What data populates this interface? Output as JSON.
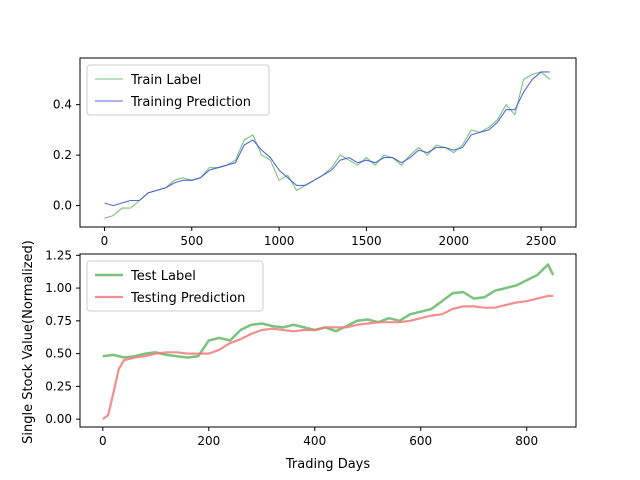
{
  "chart_data": [
    {
      "type": "line",
      "title": "",
      "xlabel": "",
      "ylabel": "",
      "xlim": [
        -140,
        2700
      ],
      "ylim": [
        -0.085,
        0.585
      ],
      "xticks": [
        0,
        500,
        1000,
        1500,
        2000,
        2500
      ],
      "yticks": [
        0.0,
        0.2,
        0.4
      ],
      "ytick_labels": [
        "0.0",
        "0.2",
        "0.4"
      ],
      "legend_position": "upper-left",
      "grid": false,
      "series": [
        {
          "name": "Train Label",
          "color": "#4caf50",
          "x": [
            0,
            50,
            100,
            150,
            200,
            250,
            300,
            350,
            400,
            450,
            500,
            550,
            600,
            650,
            700,
            750,
            800,
            850,
            900,
            950,
            1000,
            1050,
            1100,
            1150,
            1200,
            1250,
            1300,
            1350,
            1400,
            1450,
            1500,
            1550,
            1600,
            1650,
            1700,
            1750,
            1800,
            1850,
            1900,
            1950,
            2000,
            2050,
            2100,
            2150,
            2200,
            2250,
            2300,
            2350,
            2400,
            2450,
            2500,
            2550
          ],
          "y": [
            -0.05,
            -0.04,
            -0.01,
            -0.01,
            0.02,
            0.05,
            0.06,
            0.07,
            0.1,
            0.11,
            0.1,
            0.11,
            0.15,
            0.15,
            0.16,
            0.18,
            0.26,
            0.28,
            0.2,
            0.18,
            0.1,
            0.12,
            0.06,
            0.08,
            0.1,
            0.12,
            0.15,
            0.2,
            0.18,
            0.16,
            0.19,
            0.16,
            0.2,
            0.19,
            0.16,
            0.2,
            0.23,
            0.2,
            0.24,
            0.23,
            0.21,
            0.24,
            0.3,
            0.29,
            0.31,
            0.34,
            0.4,
            0.36,
            0.5,
            0.52,
            0.53,
            0.5
          ]
        },
        {
          "name": "Training Prediction",
          "color": "#3a4fd6",
          "x": [
            0,
            50,
            100,
            150,
            200,
            250,
            300,
            350,
            400,
            450,
            500,
            550,
            600,
            650,
            700,
            750,
            800,
            850,
            900,
            950,
            1000,
            1050,
            1100,
            1150,
            1200,
            1250,
            1300,
            1350,
            1400,
            1450,
            1500,
            1550,
            1600,
            1650,
            1700,
            1750,
            1800,
            1850,
            1900,
            1950,
            2000,
            2050,
            2100,
            2150,
            2200,
            2250,
            2300,
            2350,
            2400,
            2450,
            2500,
            2550
          ],
          "y": [
            0.01,
            0.0,
            0.01,
            0.02,
            0.02,
            0.05,
            0.06,
            0.07,
            0.09,
            0.1,
            0.1,
            0.11,
            0.14,
            0.15,
            0.16,
            0.17,
            0.24,
            0.26,
            0.22,
            0.19,
            0.14,
            0.11,
            0.08,
            0.08,
            0.1,
            0.12,
            0.14,
            0.18,
            0.19,
            0.17,
            0.18,
            0.17,
            0.19,
            0.19,
            0.17,
            0.19,
            0.22,
            0.21,
            0.23,
            0.23,
            0.22,
            0.23,
            0.28,
            0.29,
            0.3,
            0.33,
            0.38,
            0.38,
            0.45,
            0.5,
            0.53,
            0.53
          ]
        }
      ]
    },
    {
      "type": "line",
      "title": "",
      "xlabel": "Trading Days",
      "ylabel": "Single Stock Value(Normalized)",
      "xlim": [
        -43,
        893
      ],
      "ylim": [
        -0.06,
        1.26
      ],
      "xticks": [
        0,
        200,
        400,
        600,
        800
      ],
      "yticks": [
        0.0,
        0.25,
        0.5,
        0.75,
        1.0,
        1.25
      ],
      "ytick_labels": [
        "0.00",
        "0.25",
        "0.50",
        "0.75",
        "1.00",
        "1.25"
      ],
      "legend_position": "upper-left",
      "grid": false,
      "series": [
        {
          "name": "Test Label",
          "color": "#4caf50",
          "x": [
            0,
            20,
            40,
            60,
            80,
            100,
            120,
            140,
            160,
            180,
            200,
            220,
            240,
            260,
            280,
            300,
            320,
            340,
            360,
            380,
            400,
            420,
            440,
            460,
            480,
            500,
            520,
            540,
            560,
            580,
            600,
            620,
            640,
            660,
            680,
            700,
            720,
            740,
            760,
            780,
            800,
            820,
            840,
            850
          ],
          "y": [
            0.48,
            0.49,
            0.47,
            0.48,
            0.5,
            0.51,
            0.49,
            0.48,
            0.47,
            0.48,
            0.6,
            0.62,
            0.6,
            0.68,
            0.72,
            0.73,
            0.71,
            0.7,
            0.72,
            0.7,
            0.68,
            0.7,
            0.67,
            0.71,
            0.75,
            0.76,
            0.74,
            0.77,
            0.75,
            0.8,
            0.82,
            0.84,
            0.9,
            0.96,
            0.97,
            0.92,
            0.93,
            0.98,
            1.0,
            1.02,
            1.06,
            1.1,
            1.18,
            1.1
          ]
        },
        {
          "name": "Testing Prediction",
          "color": "#f27a7a",
          "x": [
            0,
            10,
            20,
            30,
            40,
            60,
            80,
            100,
            120,
            140,
            160,
            180,
            200,
            220,
            240,
            260,
            280,
            300,
            320,
            340,
            360,
            380,
            400,
            420,
            440,
            460,
            480,
            500,
            520,
            540,
            560,
            580,
            600,
            620,
            640,
            660,
            680,
            700,
            720,
            740,
            760,
            780,
            800,
            820,
            840,
            850
          ],
          "y": [
            0.0,
            0.03,
            0.2,
            0.38,
            0.45,
            0.47,
            0.48,
            0.5,
            0.51,
            0.51,
            0.5,
            0.5,
            0.5,
            0.53,
            0.58,
            0.61,
            0.65,
            0.68,
            0.69,
            0.68,
            0.67,
            0.68,
            0.68,
            0.7,
            0.7,
            0.7,
            0.72,
            0.73,
            0.74,
            0.74,
            0.74,
            0.75,
            0.77,
            0.79,
            0.8,
            0.84,
            0.86,
            0.86,
            0.85,
            0.85,
            0.87,
            0.89,
            0.9,
            0.92,
            0.94,
            0.94
          ]
        }
      ]
    }
  ]
}
